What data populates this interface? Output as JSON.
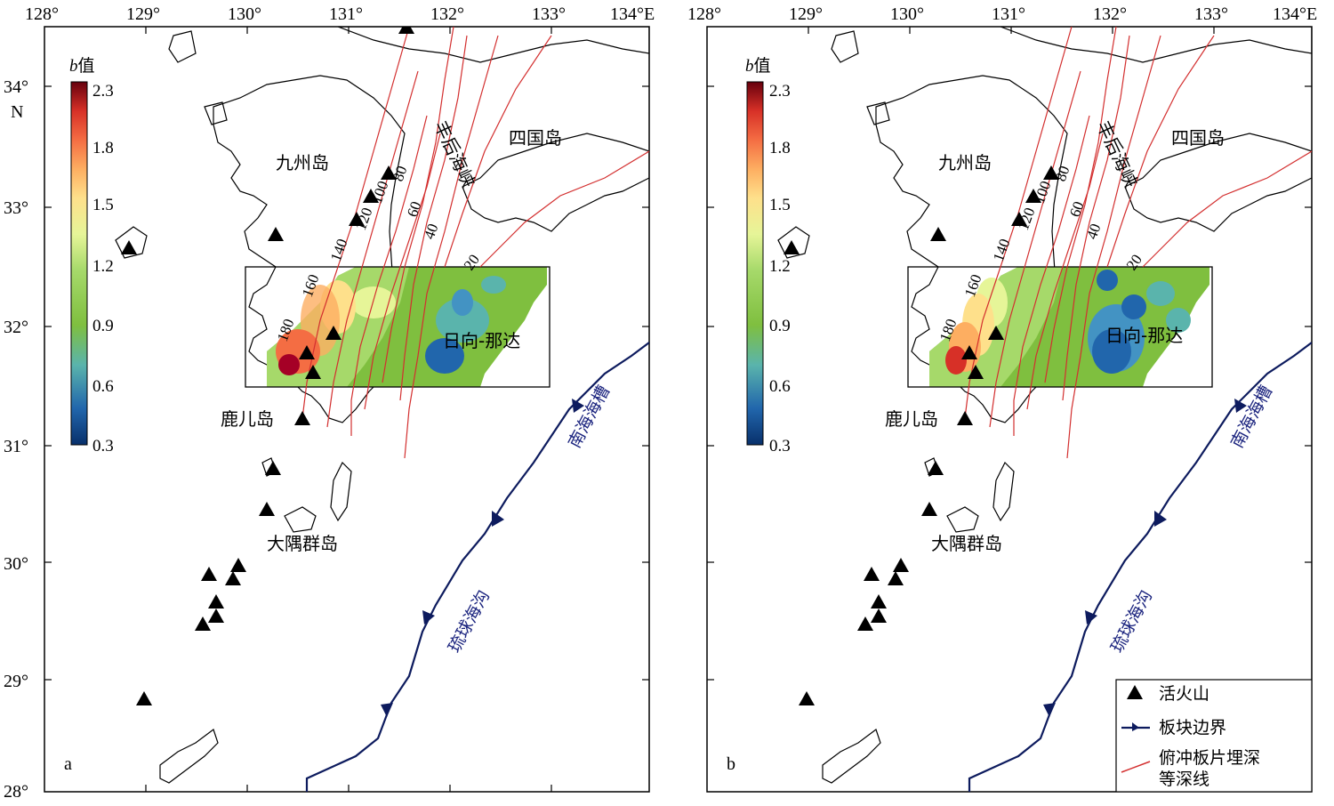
{
  "panels": [
    {
      "id": "a",
      "letter": "a",
      "lon_ticks": [
        "128°",
        "129°",
        "130°",
        "131°",
        "132°",
        "133°",
        "134°E"
      ],
      "lat_ticks": [
        "34°",
        "33°",
        "32°",
        "31°",
        "30°",
        "29°",
        "28°"
      ],
      "lat_unit": "N",
      "colorbar": {
        "title_italic": "b",
        "title_suffix": "值",
        "ticks": [
          "2.3",
          "1.8",
          "1.5",
          "1.2",
          "0.9",
          "0.6",
          "0.3"
        ]
      },
      "places": {
        "kyushu": "九州岛",
        "shikoku": "四国岛",
        "kagoshima": "鹿儿岛",
        "osumi": "大隅群岛",
        "hyuganada": "日向-那达",
        "bungo": "丰后海峡"
      },
      "trenches": {
        "nankai": "南海海槽",
        "ryukyu": "琉球海沟"
      },
      "depths": [
        "180",
        "160",
        "140",
        "120",
        "100",
        "80",
        "60",
        "40",
        "20"
      ]
    },
    {
      "id": "b",
      "letter": "b",
      "lon_ticks": [
        "128°",
        "129°",
        "130°",
        "131°",
        "132°",
        "133°",
        "134°E"
      ],
      "lat_ticks": [
        "34°",
        "33°",
        "32°",
        "31°",
        "30°",
        "29°",
        "28°"
      ],
      "lat_unit": "",
      "colorbar": {
        "title_italic": "b",
        "title_suffix": "值",
        "ticks": [
          "2.3",
          "1.8",
          "1.5",
          "1.2",
          "0.9",
          "0.6",
          "0.3"
        ]
      },
      "places": {
        "kyushu": "九州岛",
        "shikoku": "四国岛",
        "kagoshima": "鹿儿岛",
        "osumi": "大隅群岛",
        "hyuganada": "日向-那达",
        "bungo": "丰后海峡"
      },
      "trenches": {
        "nankai": "南海海槽",
        "ryukyu": "琉球海沟"
      },
      "depths": [
        "180",
        "160",
        "140",
        "120",
        "100",
        "80",
        "60",
        "40",
        "20"
      ]
    }
  ],
  "legend": {
    "volcano": "活火山",
    "plate_boundary": "板块边界",
    "contour_line1": "俯冲板片埋深",
    "contour_line2": "等深线"
  },
  "colors": {
    "trench": "#0d1b5e",
    "contour": "#d32f2f",
    "colormap": [
      "#08306b",
      "#2166ac",
      "#4393c3",
      "#5ab4ac",
      "#7fbf3f",
      "#a6d96a",
      "#e6f598",
      "#fee08b",
      "#fdae61",
      "#f46d43",
      "#d73027",
      "#a50026",
      "#67000d"
    ]
  }
}
